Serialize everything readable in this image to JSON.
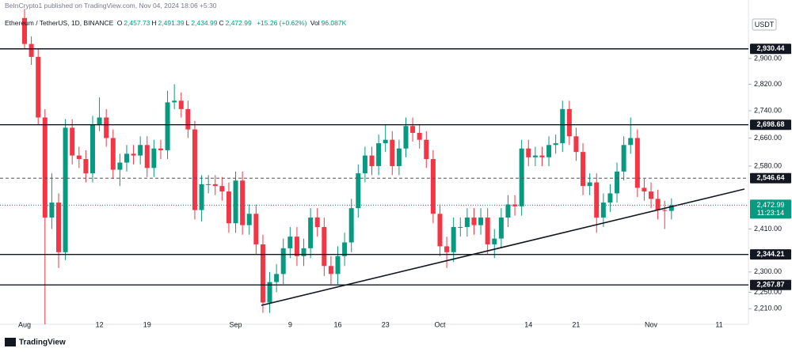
{
  "header": {
    "publisher": "BeInCrypto1 published on TradingView.com, Nov 04, 2024 18:06 +5:30",
    "symbol": "Ethereum / TetherUS, 1D, BINANCE",
    "ohlc": [
      {
        "key": "O",
        "text": "2,457.73"
      },
      {
        "key": "H",
        "text": "2,491.39"
      },
      {
        "key": "L",
        "text": "2,434.99"
      },
      {
        "key": "C",
        "text": "2,472.99"
      }
    ],
    "change": "+15.26 (+0.62%)",
    "volume_key": "Vol",
    "volume": "96.087K",
    "currency": "USDT"
  },
  "chart_data": {
    "type": "candlestick",
    "categories": [
      "Aug",
      null,
      null,
      null,
      null,
      null,
      null,
      null,
      null,
      null,
      null,
      "12",
      null,
      null,
      null,
      null,
      null,
      null,
      "19",
      null,
      null,
      null,
      null,
      null,
      null,
      null,
      null,
      null,
      null,
      null,
      null,
      "Sep",
      null,
      null,
      null,
      null,
      null,
      null,
      null,
      "9",
      null,
      null,
      null,
      null,
      null,
      null,
      "16",
      null,
      null,
      null,
      null,
      null,
      null,
      "23",
      null,
      null,
      null,
      null,
      null,
      null,
      null,
      "Oct",
      null,
      null,
      null,
      null,
      null,
      null,
      null,
      null,
      null,
      null,
      null,
      null,
      "14",
      null,
      null,
      null,
      null,
      null,
      null,
      "21",
      null,
      null,
      null,
      null,
      null,
      null,
      null,
      null,
      null,
      null,
      "Nov",
      null,
      null,
      null,
      null,
      null,
      null,
      null,
      null,
      null,
      "11"
    ],
    "open": [
      3030,
      2946,
      2905,
      2720,
      2440,
      2480,
      2350,
      2690,
      2610,
      2600,
      2560,
      2700,
      2720,
      2660,
      2570,
      2590,
      2615,
      2610,
      2640,
      2575,
      2630,
      2625,
      2765,
      2770,
      2745,
      2685,
      2460,
      2530,
      2530,
      2525,
      2510,
      2425,
      2540,
      2420,
      2450,
      2370,
      2225,
      2275,
      2295,
      2360,
      2390,
      2340,
      2360,
      2440,
      2415,
      2315,
      2295,
      2340,
      2375,
      2465,
      2560,
      2610,
      2580,
      2645,
      2655,
      2580,
      2630,
      2695,
      2675,
      2655,
      2600,
      2450,
      2365,
      2350,
      2415,
      2415,
      2440,
      2420,
      2440,
      2370,
      2385,
      2440,
      2475,
      2470,
      2630,
      2605,
      2610,
      2605,
      2640,
      2645,
      2745,
      2665,
      2620,
      2525,
      2535,
      2440,
      2480,
      2505,
      2565,
      2640,
      2660,
      2520,
      2510,
      2490,
      2460,
      2457.73,
      null,
      null,
      null,
      null,
      null,
      null,
      null
    ],
    "high": [
      3060,
      2970,
      2930,
      2745,
      2560,
      2505,
      2715,
      2715,
      2635,
      2625,
      2725,
      2780,
      2745,
      2685,
      2615,
      2640,
      2640,
      2665,
      2665,
      2655,
      2655,
      2800,
      2820,
      2795,
      2770,
      2710,
      2555,
      2555,
      2555,
      2550,
      2535,
      2565,
      2565,
      2475,
      2475,
      2395,
      2300,
      2320,
      2385,
      2415,
      2415,
      2385,
      2465,
      2465,
      2440,
      2340,
      2365,
      2400,
      2490,
      2585,
      2635,
      2635,
      2670,
      2700,
      2680,
      2655,
      2720,
      2720,
      2700,
      2680,
      2625,
      2475,
      2390,
      2440,
      2440,
      2465,
      2465,
      2465,
      2465,
      2410,
      2465,
      2500,
      2500,
      2655,
      2655,
      2635,
      2635,
      2665,
      2670,
      2770,
      2770,
      2690,
      2645,
      2560,
      2560,
      2505,
      2530,
      2590,
      2665,
      2720,
      2685,
      2545,
      2535,
      2515,
      2485,
      2491.39,
      null,
      null,
      null,
      null,
      null,
      null,
      null
    ],
    "low": [
      2930,
      2880,
      2700,
      2120,
      2410,
      2310,
      2330,
      2585,
      2575,
      2535,
      2535,
      2680,
      2635,
      2545,
      2525,
      2565,
      2585,
      2585,
      2550,
      2550,
      2600,
      2600,
      2745,
      2720,
      2660,
      2435,
      2430,
      2505,
      2500,
      2485,
      2400,
      2400,
      2395,
      2395,
      2345,
      2200,
      2200,
      2250,
      2270,
      2335,
      2315,
      2315,
      2335,
      2390,
      2290,
      2270,
      2270,
      2315,
      2350,
      2440,
      2535,
      2555,
      2555,
      2620,
      2555,
      2555,
      2605,
      2650,
      2630,
      2575,
      2425,
      2340,
      2310,
      2325,
      2390,
      2390,
      2395,
      2395,
      2345,
      2335,
      2360,
      2415,
      2445,
      2445,
      2580,
      2580,
      2580,
      2580,
      2615,
      2620,
      2640,
      2595,
      2500,
      2500,
      2400,
      2415,
      2455,
      2480,
      2540,
      2615,
      2495,
      2485,
      2465,
      2435,
      2410,
      2434.99,
      null,
      null,
      null,
      null,
      null,
      null,
      null
    ],
    "close": [
      2946,
      2905,
      2720,
      2440,
      2480,
      2350,
      2690,
      2610,
      2600,
      2560,
      2700,
      2720,
      2660,
      2570,
      2590,
      2615,
      2610,
      2640,
      2575,
      2630,
      2625,
      2765,
      2770,
      2745,
      2685,
      2460,
      2530,
      2530,
      2525,
      2510,
      2425,
      2540,
      2420,
      2450,
      2370,
      2225,
      2275,
      2295,
      2360,
      2390,
      2340,
      2360,
      2440,
      2415,
      2315,
      2295,
      2340,
      2375,
      2465,
      2560,
      2610,
      2580,
      2645,
      2655,
      2580,
      2630,
      2695,
      2675,
      2655,
      2600,
      2450,
      2365,
      2350,
      2415,
      2415,
      2440,
      2420,
      2440,
      2370,
      2385,
      2440,
      2475,
      2470,
      2630,
      2605,
      2610,
      2605,
      2640,
      2645,
      2745,
      2665,
      2620,
      2525,
      2535,
      2440,
      2480,
      2505,
      2565,
      2640,
      2660,
      2520,
      2510,
      2490,
      2460,
      2457.73,
      2472.99,
      null,
      null,
      null,
      null,
      null,
      null,
      null
    ],
    "up_color": "#089981",
    "down_color": "#f23645",
    "log_scale": true,
    "ylim": [
      2173,
      3090
    ],
    "yticks": [
      {
        "value": 2900,
        "label": "2,900.00"
      },
      {
        "value": 2820,
        "label": "2,820.00"
      },
      {
        "value": 2740,
        "label": "2,740.00"
      },
      {
        "value": 2660,
        "label": "2,660.00"
      },
      {
        "value": 2580,
        "label": "2,580.00"
      },
      {
        "value": 2410,
        "label": "2,410.00"
      },
      {
        "value": 2300,
        "label": "2,300.00"
      },
      {
        "value": 2250,
        "label": "2,250.00"
      },
      {
        "value": 2210,
        "label": "2,210.00"
      }
    ],
    "levels": [
      {
        "value": 2930.44,
        "label": "2,930.44",
        "style": "solid"
      },
      {
        "value": 2698.68,
        "label": "2,698.68",
        "style": "solid"
      },
      {
        "value": 2546.64,
        "label": "2,546.64",
        "style": "dashed"
      },
      {
        "value": 2344.21,
        "label": "2,344.21",
        "style": "solid"
      },
      {
        "value": 2267.87,
        "label": "2,267.87",
        "style": "solid"
      }
    ],
    "last_price": {
      "value": 2472.99,
      "label": "2,472.99",
      "countdown": "11:23:14"
    }
  },
  "footer": {
    "brand": "TradingView"
  }
}
